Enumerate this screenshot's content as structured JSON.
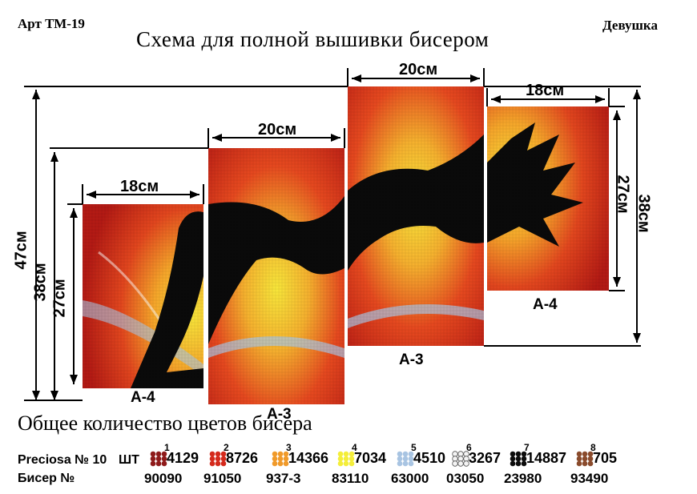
{
  "header": {
    "article": "Арт ТМ-19",
    "name": "Девушка",
    "title": "Схема для полной вышивки бисером"
  },
  "panels": [
    {
      "id": "panel-1",
      "label": "А-4",
      "width_label": "18см",
      "height_label": "27см"
    },
    {
      "id": "panel-2",
      "label": "А-3",
      "width_label": "20см"
    },
    {
      "id": "panel-3",
      "label": "А-3",
      "width_label": "20см"
    },
    {
      "id": "panel-4",
      "label": "А-4",
      "width_label": "18см",
      "height_label": "27см"
    }
  ],
  "overall": {
    "left_total": "47см",
    "left_mid": "38см",
    "right_total": "38см"
  },
  "legend": {
    "title": "Общее количество цветов бисера",
    "brand_label": "Preciosa № 10",
    "unit_label": "ШТ",
    "bead_label": "Бисер №",
    "colors": [
      {
        "index": "1",
        "count": "4129",
        "bead": "90090",
        "color": "#8e1a1a"
      },
      {
        "index": "2",
        "count": "8726",
        "bead": "91050",
        "color": "#d42a1c"
      },
      {
        "index": "3",
        "count": "14366",
        "bead": "937-3",
        "color": "#f09a2a"
      },
      {
        "index": "4",
        "count": "7034",
        "bead": "83110",
        "color": "#f4ee3a"
      },
      {
        "index": "5",
        "count": "4510",
        "bead": "63000",
        "color": "#a8c4e2"
      },
      {
        "index": "6",
        "count": "3267",
        "bead": "03050",
        "color": "#f4f4f4"
      },
      {
        "index": "7",
        "count": "14887",
        "bead": "23980",
        "color": "#0c0c0c"
      },
      {
        "index": "8",
        "count": "705",
        "bead": "93490",
        "color": "#8a4b2c"
      }
    ]
  }
}
